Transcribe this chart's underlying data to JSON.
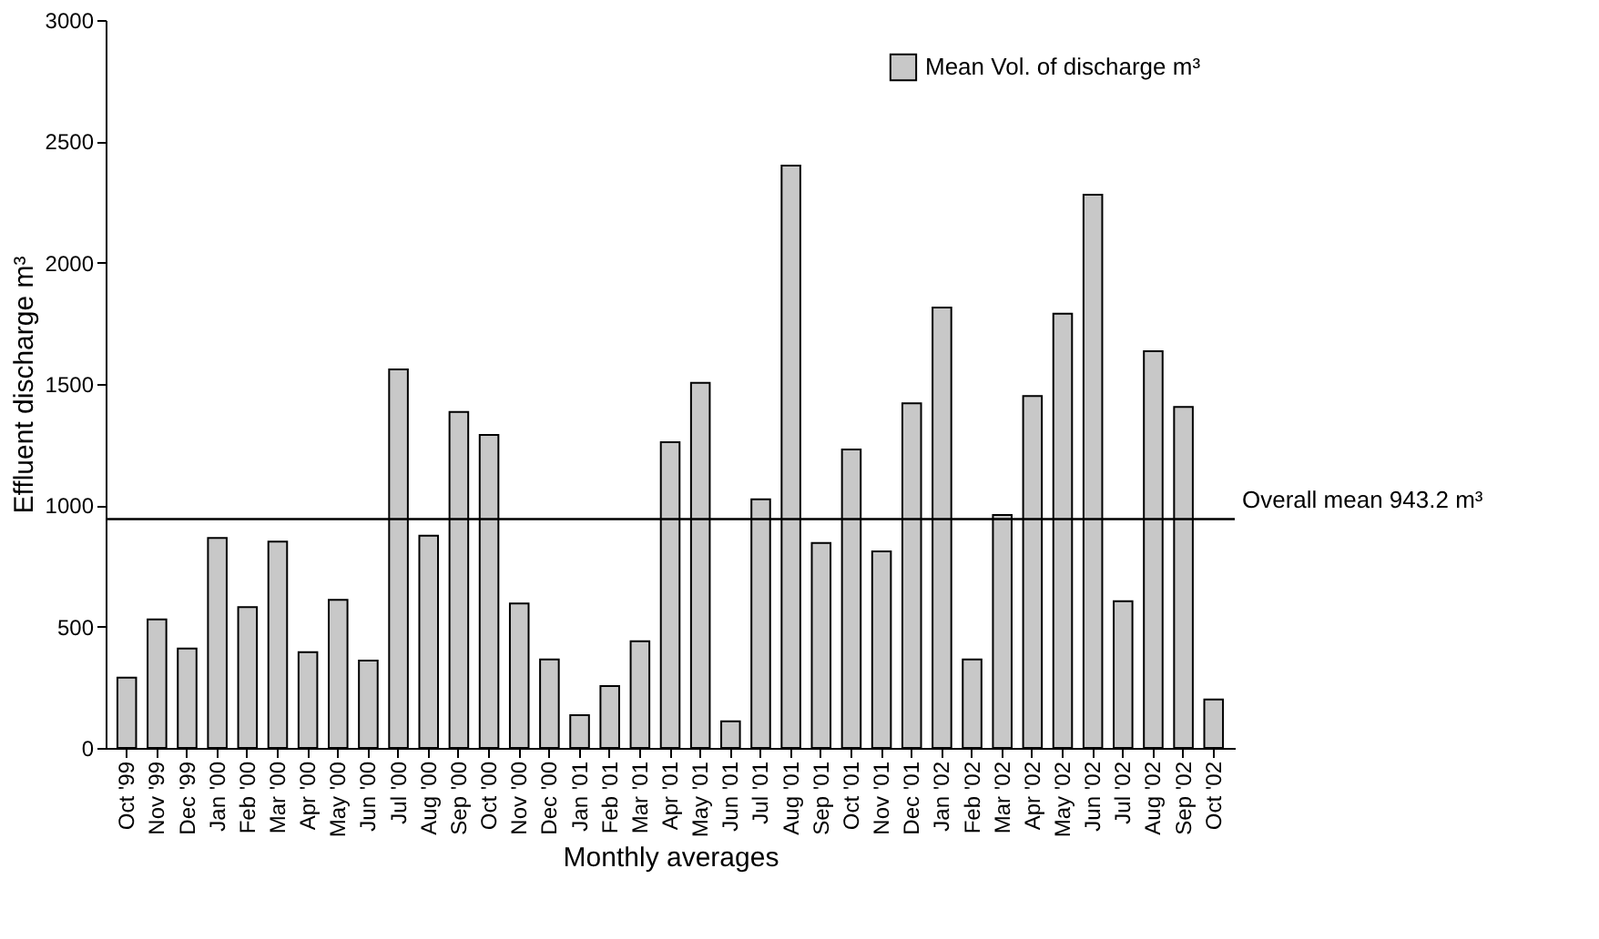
{
  "chart_data": {
    "type": "bar",
    "xlabel": "Monthly averages",
    "ylabel": "Effluent discharge m³",
    "categories": [
      "Oct '99",
      "Nov '99",
      "Dec '99",
      "Jan '00",
      "Feb '00",
      "Mar '00",
      "Apr '00",
      "May '00",
      "Jun '00",
      "Jul '00",
      "Aug '00",
      "Sep '00",
      "Oct '00",
      "Nov '00",
      "Dec '00",
      "Jan '01",
      "Feb '01",
      "Mar '01",
      "Apr '01",
      "May '01",
      "Jun '01",
      "Jul '01",
      "Aug '01",
      "Sep '01",
      "Oct '01",
      "Nov '01",
      "Dec '01",
      "Jan '02",
      "Feb '02",
      "Mar '02",
      "Apr '02",
      "May '02",
      "Jun '02",
      "Jul '02",
      "Aug '02",
      "Sep '02",
      "Oct '02"
    ],
    "series": [
      {
        "name": "Mean Vol. of discharge m³",
        "color": "#c8c8c8",
        "values": [
          290,
          530,
          410,
          865,
          580,
          850,
          395,
          610,
          360,
          1560,
          875,
          1385,
          1290,
          595,
          365,
          135,
          255,
          440,
          1260,
          1505,
          110,
          1025,
          2400,
          845,
          1230,
          810,
          1420,
          1815,
          365,
          960,
          1450,
          1790,
          2280,
          605,
          1635,
          1405,
          200
        ]
      }
    ],
    "ylim": [
      0,
      3000
    ],
    "yticks": [
      0,
      500,
      1000,
      1500,
      2000,
      2500,
      3000
    ],
    "ref_lines": [
      {
        "axis": "y",
        "value": 943.2,
        "label": "Overall mean 943.2 m³",
        "color": "#000000"
      }
    ],
    "grid": false,
    "legend": "top right"
  }
}
